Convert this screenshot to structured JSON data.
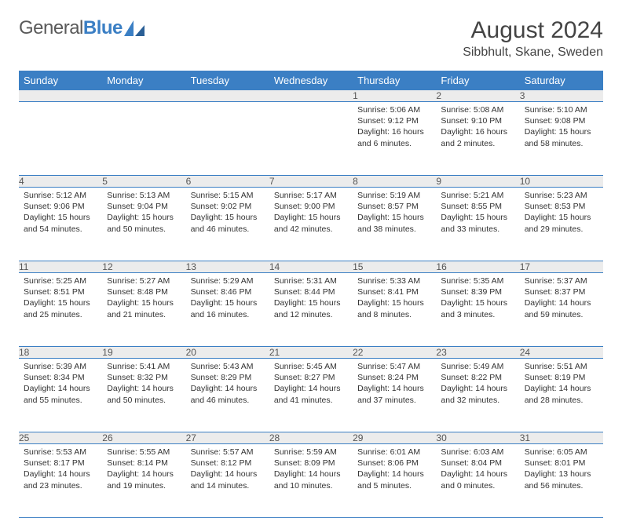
{
  "brand": {
    "part1": "General",
    "part2": "Blue"
  },
  "title": "August 2024",
  "location": "Sibbhult, Skane, Sweden",
  "colors": {
    "header_bg": "#3b7fc4",
    "header_text": "#ffffff",
    "daynum_bg": "#ececec",
    "text": "#333333",
    "border": "#3b7fc4"
  },
  "weekdays": [
    "Sunday",
    "Monday",
    "Tuesday",
    "Wednesday",
    "Thursday",
    "Friday",
    "Saturday"
  ],
  "weeks": [
    [
      null,
      null,
      null,
      null,
      {
        "n": "1",
        "sr": "5:06 AM",
        "ss": "9:12 PM",
        "dl": "16 hours and 6 minutes."
      },
      {
        "n": "2",
        "sr": "5:08 AM",
        "ss": "9:10 PM",
        "dl": "16 hours and 2 minutes."
      },
      {
        "n": "3",
        "sr": "5:10 AM",
        "ss": "9:08 PM",
        "dl": "15 hours and 58 minutes."
      }
    ],
    [
      {
        "n": "4",
        "sr": "5:12 AM",
        "ss": "9:06 PM",
        "dl": "15 hours and 54 minutes."
      },
      {
        "n": "5",
        "sr": "5:13 AM",
        "ss": "9:04 PM",
        "dl": "15 hours and 50 minutes."
      },
      {
        "n": "6",
        "sr": "5:15 AM",
        "ss": "9:02 PM",
        "dl": "15 hours and 46 minutes."
      },
      {
        "n": "7",
        "sr": "5:17 AM",
        "ss": "9:00 PM",
        "dl": "15 hours and 42 minutes."
      },
      {
        "n": "8",
        "sr": "5:19 AM",
        "ss": "8:57 PM",
        "dl": "15 hours and 38 minutes."
      },
      {
        "n": "9",
        "sr": "5:21 AM",
        "ss": "8:55 PM",
        "dl": "15 hours and 33 minutes."
      },
      {
        "n": "10",
        "sr": "5:23 AM",
        "ss": "8:53 PM",
        "dl": "15 hours and 29 minutes."
      }
    ],
    [
      {
        "n": "11",
        "sr": "5:25 AM",
        "ss": "8:51 PM",
        "dl": "15 hours and 25 minutes."
      },
      {
        "n": "12",
        "sr": "5:27 AM",
        "ss": "8:48 PM",
        "dl": "15 hours and 21 minutes."
      },
      {
        "n": "13",
        "sr": "5:29 AM",
        "ss": "8:46 PM",
        "dl": "15 hours and 16 minutes."
      },
      {
        "n": "14",
        "sr": "5:31 AM",
        "ss": "8:44 PM",
        "dl": "15 hours and 12 minutes."
      },
      {
        "n": "15",
        "sr": "5:33 AM",
        "ss": "8:41 PM",
        "dl": "15 hours and 8 minutes."
      },
      {
        "n": "16",
        "sr": "5:35 AM",
        "ss": "8:39 PM",
        "dl": "15 hours and 3 minutes."
      },
      {
        "n": "17",
        "sr": "5:37 AM",
        "ss": "8:37 PM",
        "dl": "14 hours and 59 minutes."
      }
    ],
    [
      {
        "n": "18",
        "sr": "5:39 AM",
        "ss": "8:34 PM",
        "dl": "14 hours and 55 minutes."
      },
      {
        "n": "19",
        "sr": "5:41 AM",
        "ss": "8:32 PM",
        "dl": "14 hours and 50 minutes."
      },
      {
        "n": "20",
        "sr": "5:43 AM",
        "ss": "8:29 PM",
        "dl": "14 hours and 46 minutes."
      },
      {
        "n": "21",
        "sr": "5:45 AM",
        "ss": "8:27 PM",
        "dl": "14 hours and 41 minutes."
      },
      {
        "n": "22",
        "sr": "5:47 AM",
        "ss": "8:24 PM",
        "dl": "14 hours and 37 minutes."
      },
      {
        "n": "23",
        "sr": "5:49 AM",
        "ss": "8:22 PM",
        "dl": "14 hours and 32 minutes."
      },
      {
        "n": "24",
        "sr": "5:51 AM",
        "ss": "8:19 PM",
        "dl": "14 hours and 28 minutes."
      }
    ],
    [
      {
        "n": "25",
        "sr": "5:53 AM",
        "ss": "8:17 PM",
        "dl": "14 hours and 23 minutes."
      },
      {
        "n": "26",
        "sr": "5:55 AM",
        "ss": "8:14 PM",
        "dl": "14 hours and 19 minutes."
      },
      {
        "n": "27",
        "sr": "5:57 AM",
        "ss": "8:12 PM",
        "dl": "14 hours and 14 minutes."
      },
      {
        "n": "28",
        "sr": "5:59 AM",
        "ss": "8:09 PM",
        "dl": "14 hours and 10 minutes."
      },
      {
        "n": "29",
        "sr": "6:01 AM",
        "ss": "8:06 PM",
        "dl": "14 hours and 5 minutes."
      },
      {
        "n": "30",
        "sr": "6:03 AM",
        "ss": "8:04 PM",
        "dl": "14 hours and 0 minutes."
      },
      {
        "n": "31",
        "sr": "6:05 AM",
        "ss": "8:01 PM",
        "dl": "13 hours and 56 minutes."
      }
    ]
  ],
  "labels": {
    "sunrise": "Sunrise:",
    "sunset": "Sunset:",
    "daylight": "Daylight:"
  }
}
